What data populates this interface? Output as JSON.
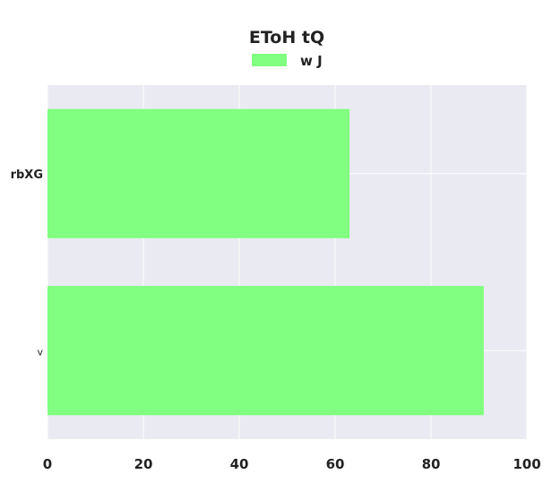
{
  "chart_data": {
    "type": "bar",
    "orientation": "horizontal",
    "title": "EToH tQ",
    "categories": [
      "rbXG",
      "v"
    ],
    "series": [
      {
        "name": "w J",
        "values": [
          63,
          91
        ],
        "color": "#80ff80"
      }
    ],
    "xlim": [
      0,
      100
    ],
    "xticks": [
      "0",
      "20",
      "40",
      "60",
      "80",
      "100"
    ],
    "xlabel": "",
    "ylabel": "",
    "grid": true,
    "legend_position": "top-center",
    "background_color": "#eaeaf2",
    "grid_color": "#ffffff"
  }
}
